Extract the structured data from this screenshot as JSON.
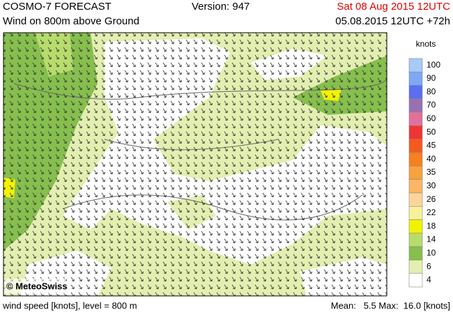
{
  "header": {
    "title": "COSMO-7 FORECAST",
    "subtitle": "Wind on 800m above Ground",
    "version": "Version: 947",
    "valid": "Sat 08 Aug 2015 12UTC",
    "run": "05.08.2015 12UTC +72h"
  },
  "map": {
    "credit": "© MeteoSwiss"
  },
  "legend": {
    "unit": "knots",
    "levels": [
      {
        "label": "100",
        "color": "#a9c9f7"
      },
      {
        "label": "90",
        "color": "#7fa8f4"
      },
      {
        "label": "80",
        "color": "#5a6ef0"
      },
      {
        "label": "70",
        "color": "#9b6fb2"
      },
      {
        "label": "60",
        "color": "#e27199"
      },
      {
        "label": "50",
        "color": "#ef3434"
      },
      {
        "label": "45",
        "color": "#f4591f"
      },
      {
        "label": "40",
        "color": "#f7801f"
      },
      {
        "label": "35",
        "color": "#f9a13e"
      },
      {
        "label": "30",
        "color": "#fbb766"
      },
      {
        "label": "26",
        "color": "#fdd49a"
      },
      {
        "label": "22",
        "color": "#f6f29a"
      },
      {
        "label": "18",
        "color": "#f2f200"
      },
      {
        "label": "14",
        "color": "#b7dc6c"
      },
      {
        "label": "10",
        "color": "#86bf4e"
      },
      {
        "label": "6",
        "color": "#e3efb0"
      },
      {
        "label": "4",
        "color": "#ffffff"
      }
    ]
  },
  "footer": {
    "left": "wind speed [knots], level = 800 m",
    "right": "Mean:   5.5 Max:  16.0 [knots]"
  }
}
